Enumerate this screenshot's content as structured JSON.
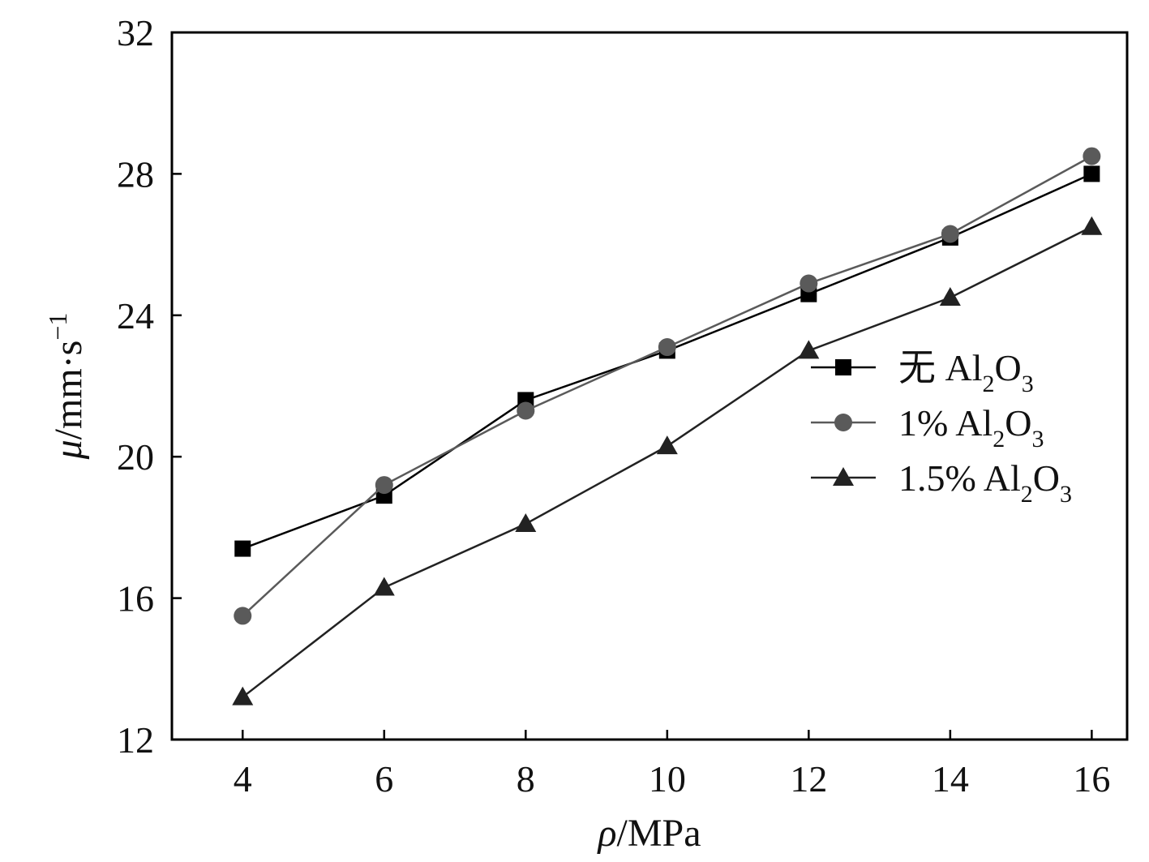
{
  "chart_data": {
    "type": "line",
    "xlabel": "ρ/MPa",
    "ylabel": "μ/mm·s−1",
    "x": [
      4,
      6,
      8,
      10,
      12,
      14,
      16
    ],
    "xlim": [
      3,
      16.5
    ],
    "ylim": [
      12,
      32
    ],
    "xticks": [
      4,
      6,
      8,
      10,
      12,
      14,
      16
    ],
    "yticks": [
      12,
      16,
      20,
      24,
      28,
      32
    ],
    "grid": false,
    "legend_position": "right",
    "series": [
      {
        "name": "无 Al2O3",
        "label_prefix": "无 ",
        "marker": "square",
        "color": "#000000",
        "values": [
          17.4,
          18.9,
          21.6,
          23.0,
          24.6,
          26.2,
          28.0
        ]
      },
      {
        "name": "1% Al2O3",
        "label_prefix": "1% ",
        "marker": "circle",
        "color": "#5a5a5a",
        "values": [
          15.5,
          19.2,
          21.3,
          23.1,
          24.9,
          26.3,
          28.5
        ]
      },
      {
        "name": "1.5% Al2O3",
        "label_prefix": "1.5% ",
        "marker": "triangle",
        "color": "#222222",
        "values": [
          13.2,
          16.3,
          18.1,
          20.3,
          23.0,
          24.5,
          26.5
        ]
      }
    ]
  }
}
